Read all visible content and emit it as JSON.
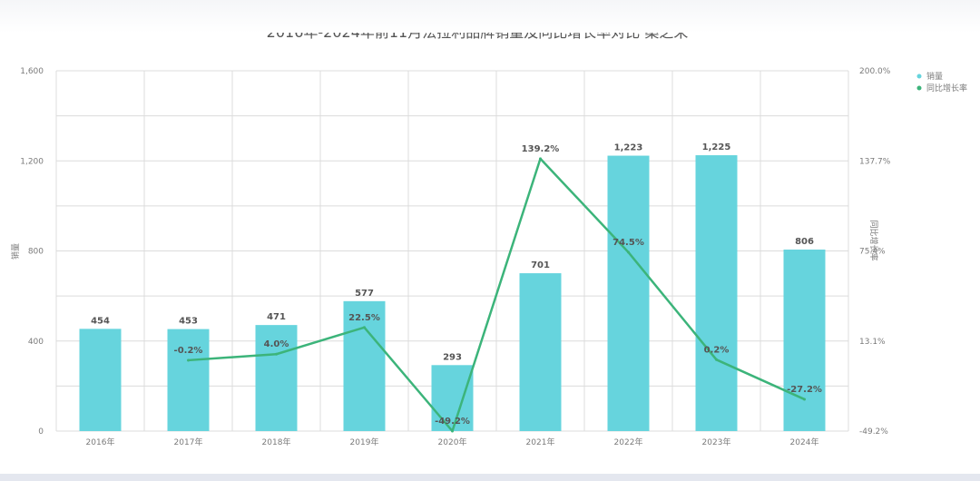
{
  "chart_data": {
    "type": "bar",
    "title": "2016年-2024年前11月法拉利品牌销量及同比增长率对比 桑之未",
    "categories": [
      "2016年",
      "2017年",
      "2018年",
      "2019年",
      "2020年",
      "2021年",
      "2022年",
      "2023年",
      "2024年"
    ],
    "series": [
      {
        "name": "销量",
        "type": "bar",
        "axis": "left",
        "color": "#66d4dd",
        "values": [
          454,
          453,
          471,
          577,
          293,
          701,
          1223,
          1225,
          806
        ],
        "labels": [
          "454",
          "453",
          "471",
          "577",
          "293",
          "701",
          "1,223",
          "1,225",
          "806"
        ]
      },
      {
        "name": "同比增长率",
        "type": "line",
        "axis": "right",
        "color": "#3cb47a",
        "values": [
          null,
          -0.2,
          4.0,
          22.5,
          -49.2,
          139.2,
          74.5,
          0.2,
          -27.2
        ],
        "labels": [
          "",
          "-0.2%",
          "4.0%",
          "22.5%",
          "-49.2%",
          "139.2%",
          "74.5%",
          "0.2%",
          "-27.2%"
        ]
      }
    ],
    "ylabel": "销量",
    "ylabel_right": "同比增长率",
    "ylim": [
      0,
      1600
    ],
    "yticks": [
      "0",
      "400",
      "800",
      "1,200",
      "1,600"
    ],
    "ylim_right": [
      -49.2,
      200
    ],
    "yticks_right": [
      "-49.2%",
      "13.1%",
      "75.4%",
      "137.7%",
      "200.0%"
    ],
    "legend_position": "top-right",
    "grid": true
  }
}
